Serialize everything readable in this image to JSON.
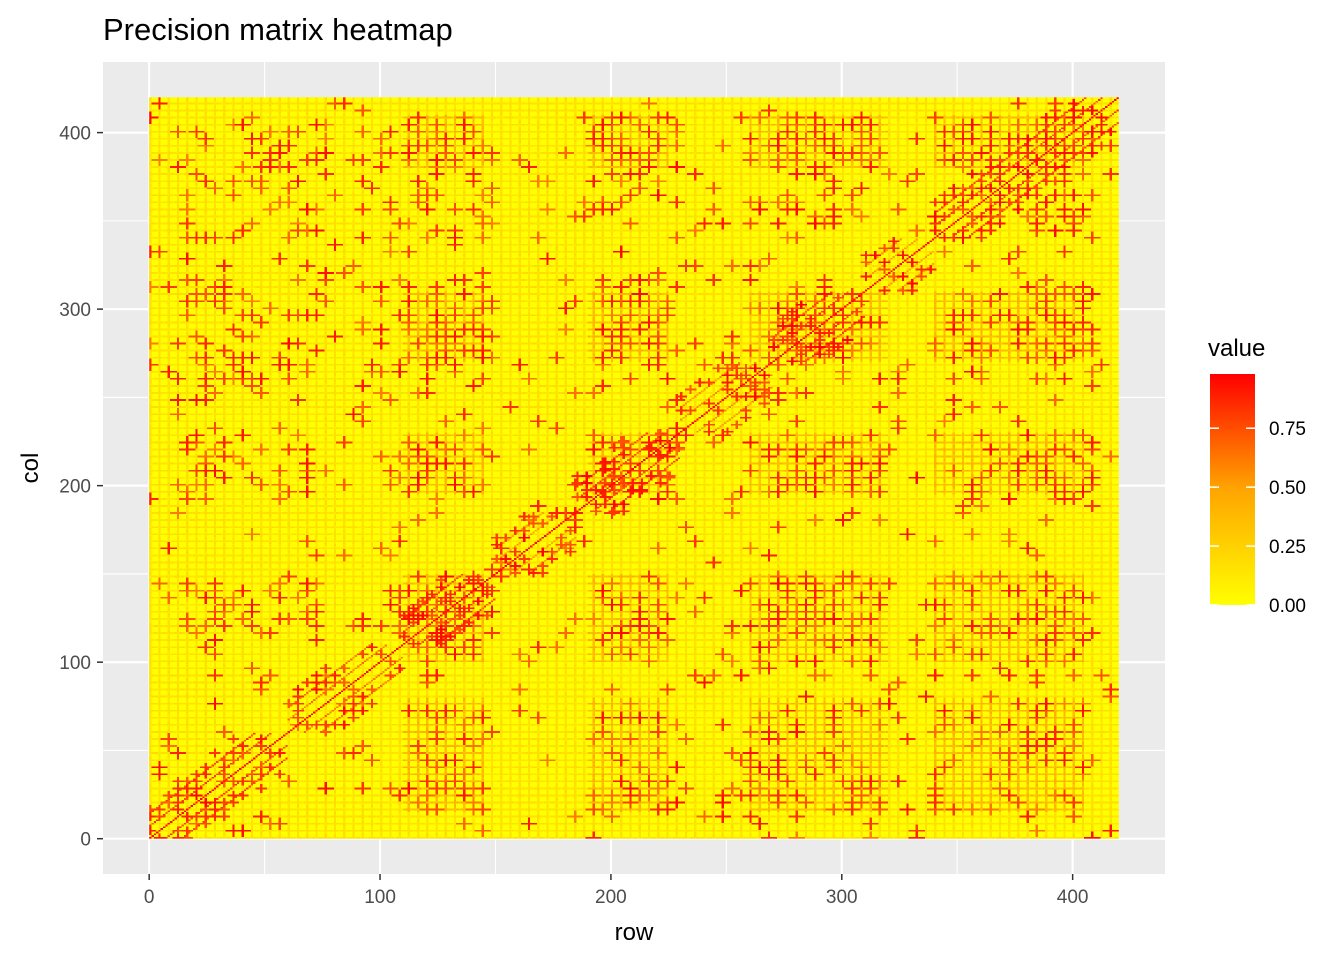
{
  "chart_data": {
    "type": "heatmap",
    "title": "Precision matrix heatmap",
    "xlabel": "row",
    "ylabel": "col",
    "xlim": [
      -20,
      440
    ],
    "ylim": [
      -20,
      440
    ],
    "matrix_size": 420,
    "x_ticks": [
      0,
      100,
      200,
      300,
      400
    ],
    "y_ticks": [
      0,
      100,
      200,
      300,
      400
    ],
    "color_scale": {
      "low": "#FFFF00",
      "mid": "#FFA500",
      "high": "#FF0000",
      "min": 0.0,
      "max": 0.98
    },
    "legend": {
      "title": "value",
      "labels": [
        "0.00",
        "0.25",
        "0.50",
        "0.75"
      ],
      "breaks": [
        0.0,
        0.25,
        0.5,
        0.75
      ],
      "position": "right"
    },
    "structure": {
      "diagonal_value": 0.95,
      "diagonal_blocks": [
        {
          "from": 0,
          "to": 60,
          "value": 0.85
        },
        {
          "from": 60,
          "to": 110,
          "value": 0.7
        },
        {
          "from": 110,
          "to": 150,
          "value": 0.85
        },
        {
          "from": 150,
          "to": 185,
          "value": 0.55
        },
        {
          "from": 185,
          "to": 230,
          "value": 0.85
        },
        {
          "from": 230,
          "to": 270,
          "value": 0.6
        },
        {
          "from": 270,
          "to": 310,
          "value": 0.85
        },
        {
          "from": 310,
          "to": 340,
          "value": 0.55
        },
        {
          "from": 340,
          "to": 420,
          "value": 0.85
        }
      ],
      "dense_column_bands": [
        {
          "from": 110,
          "to": 145
        },
        {
          "from": 190,
          "to": 225
        },
        {
          "from": 260,
          "to": 320
        },
        {
          "from": 340,
          "to": 405
        }
      ],
      "dense_row_bands": [
        {
          "from": 15,
          "to": 80
        },
        {
          "from": 100,
          "to": 150
        },
        {
          "from": 195,
          "to": 230
        },
        {
          "from": 270,
          "to": 310
        },
        {
          "from": 380,
          "to": 410
        }
      ]
    }
  }
}
